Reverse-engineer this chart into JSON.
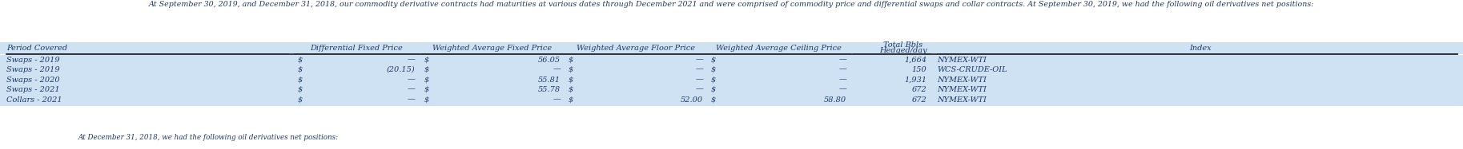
{
  "intro_text": "At September 30, 2019, and December 31, 2018, our commodity derivative contracts had maturities at various dates through December 2021 and were comprised of commodity price and differential swaps and collar contracts. At September 30, 2019, we had the following oil derivatives net positions:",
  "footer_text": "At December 31, 2018, we had the following oil derivatives net positions:",
  "bg_color": "#cfe2f3",
  "text_color": "#1f3864",
  "font_size": 7.0,
  "header_font_size": 7.0,
  "intro_font_size": 6.8,
  "row_data": [
    [
      "Swaps - 2019",
      "$",
      "—",
      "$",
      "56.05",
      "$",
      "—",
      "$",
      "—",
      "1,664",
      "NYMEX-WTI"
    ],
    [
      "Swaps - 2019",
      "$",
      "(20.15)",
      "$",
      "—",
      "$",
      "—",
      "$",
      "—",
      "150",
      "WCS-CRUDE-OIL"
    ],
    [
      "Swaps - 2020",
      "$",
      "—",
      "$",
      "55.81",
      "$",
      "—",
      "$",
      "—",
      "1,931",
      "NYMEX-WTI"
    ],
    [
      "Swaps - 2021",
      "$",
      "—",
      "$",
      "55.78",
      "$",
      "—",
      "$",
      "—",
      "672",
      "NYMEX-WTI"
    ],
    [
      "Collars - 2021",
      "$",
      "—",
      "$",
      "—",
      "$",
      "52.00",
      "$",
      "58.80",
      "672",
      "NYMEX-WTI"
    ]
  ],
  "col_headers_line1": [
    "Period Covered",
    "Differential Fixed Price",
    "Weighted Average Fixed Price",
    "Weighted Average Floor Price",
    "Weighted Average Ceiling Price",
    "Total Bbls",
    "Index"
  ],
  "col_headers_line2": [
    "",
    "",
    "",
    "",
    "",
    "Hedged/day",
    ""
  ]
}
